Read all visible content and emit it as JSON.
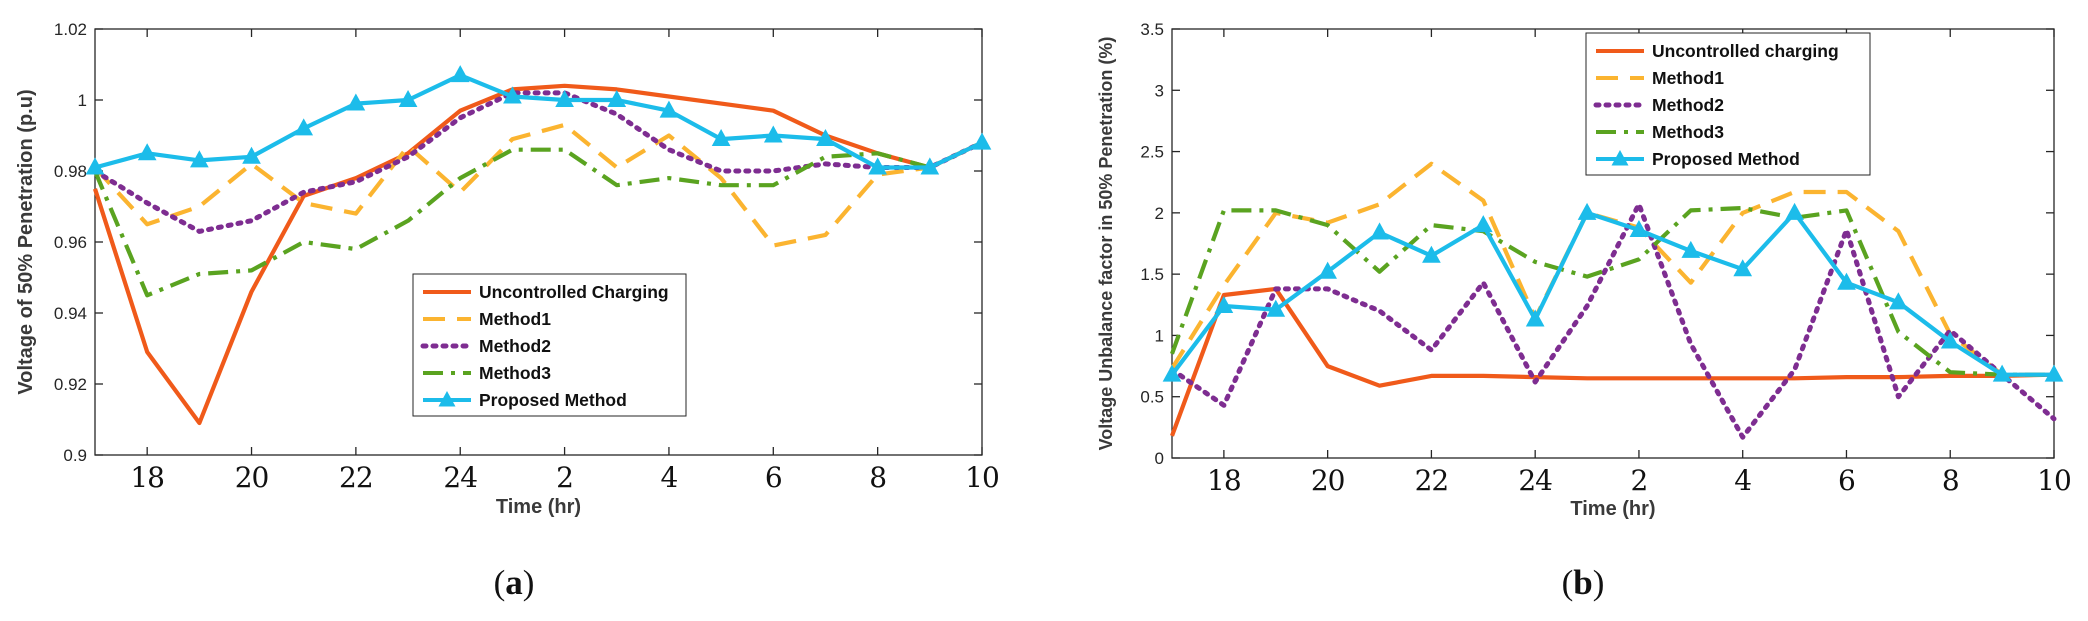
{
  "colors": {
    "uncontrolled": "#f05a1a",
    "method1": "#fbb430",
    "method2": "#7e2d91",
    "method3": "#5aa320",
    "proposed": "#1cbcea"
  },
  "chart_data": [
    {
      "type": "line",
      "caption_letter": "a",
      "xlabel": "Time (hr)",
      "ylabel": "Voltage of 50% Penetration (p.u)",
      "ylim": [
        0.9,
        1.02
      ],
      "yticks": [
        "0.9",
        "0.92",
        "0.94",
        "0.96",
        "0.98",
        "1",
        "1.02"
      ],
      "xtick_labels": [
        "18",
        "20",
        "22",
        "24",
        "2",
        "4",
        "6",
        "8",
        "10"
      ],
      "x": [
        17,
        18,
        19,
        20,
        21,
        22,
        23,
        24,
        25,
        26,
        27,
        28,
        29,
        30,
        31,
        32,
        33,
        34
      ],
      "xlim": [
        17,
        34
      ],
      "legend_position": "lower-center",
      "series": [
        {
          "key": "uncontrolled",
          "name": "Uncontrolled Charging",
          "style": "solid",
          "marker": "none",
          "values": [
            0.975,
            0.929,
            0.909,
            0.946,
            0.973,
            0.978,
            0.985,
            0.997,
            1.003,
            1.004,
            1.003,
            1.001,
            0.999,
            0.997,
            0.99,
            0.985,
            0.981,
            0.988
          ]
        },
        {
          "key": "method1",
          "name": "Method1",
          "style": "dash",
          "marker": "none",
          "values": [
            0.981,
            0.965,
            0.97,
            0.982,
            0.971,
            0.968,
            0.987,
            0.974,
            0.989,
            0.993,
            0.981,
            0.99,
            0.978,
            0.959,
            0.962,
            0.979,
            0.981,
            0.988
          ]
        },
        {
          "key": "method2",
          "name": "Method2",
          "style": "dot",
          "marker": "none",
          "values": [
            0.98,
            0.971,
            0.963,
            0.966,
            0.974,
            0.977,
            0.984,
            0.995,
            1.002,
            1.002,
            0.996,
            0.986,
            0.98,
            0.98,
            0.982,
            0.981,
            0.981,
            0.988
          ]
        },
        {
          "key": "method3",
          "name": "Method3",
          "style": "dashdot",
          "marker": "none",
          "values": [
            0.98,
            0.945,
            0.951,
            0.952,
            0.96,
            0.958,
            0.966,
            0.978,
            0.986,
            0.986,
            0.976,
            0.978,
            0.976,
            0.976,
            0.984,
            0.985,
            0.981,
            0.988
          ]
        },
        {
          "key": "proposed",
          "name": "Proposed Method",
          "style": "solid",
          "marker": "triangle",
          "values": [
            0.981,
            0.985,
            0.983,
            0.984,
            0.992,
            0.999,
            1.0,
            1.007,
            1.001,
            1.0,
            1.0,
            0.997,
            0.989,
            0.99,
            0.989,
            0.981,
            0.981,
            0.988
          ]
        }
      ]
    },
    {
      "type": "line",
      "caption_letter": "b",
      "xlabel": "Time (hr)",
      "ylabel": "Voltage Unbalance factor in 50% Penetration (%)",
      "ylim": [
        0,
        3.5
      ],
      "yticks": [
        "0",
        "0.5",
        "1",
        "1.5",
        "2",
        "2.5",
        "3",
        "3.5"
      ],
      "xtick_labels": [
        "18",
        "20",
        "22",
        "24",
        "2",
        "4",
        "6",
        "8",
        "10"
      ],
      "x": [
        17,
        18,
        19,
        20,
        21,
        22,
        23,
        24,
        25,
        26,
        27,
        28,
        29,
        30,
        31,
        32,
        33,
        34
      ],
      "xlim": [
        17,
        34
      ],
      "legend_position": "top-center",
      "series": [
        {
          "key": "uncontrolled",
          "name": "Uncontrolled charging",
          "style": "solid",
          "marker": "none",
          "values": [
            0.18,
            1.33,
            1.38,
            0.75,
            0.59,
            0.67,
            0.67,
            0.66,
            0.65,
            0.65,
            0.65,
            0.65,
            0.65,
            0.66,
            0.66,
            0.67,
            0.67,
            0.68
          ]
        },
        {
          "key": "method1",
          "name": "Method1",
          "style": "dash",
          "marker": "none",
          "values": [
            0.73,
            1.41,
            2.0,
            1.92,
            2.07,
            2.4,
            2.1,
            1.14,
            2.0,
            1.88,
            1.43,
            2.0,
            2.17,
            2.17,
            1.85,
            1.01,
            0.68,
            0.68
          ]
        },
        {
          "key": "method2",
          "name": "Method2",
          "style": "dot",
          "marker": "none",
          "values": [
            0.72,
            0.43,
            1.38,
            1.38,
            1.2,
            0.88,
            1.43,
            0.62,
            1.24,
            2.07,
            0.93,
            0.17,
            0.72,
            1.86,
            0.5,
            1.04,
            0.68,
            0.32
          ]
        },
        {
          "key": "method3",
          "name": "Method3",
          "style": "dashdot",
          "marker": "none",
          "values": [
            0.85,
            2.02,
            2.02,
            1.9,
            1.52,
            1.9,
            1.85,
            1.6,
            1.48,
            1.62,
            2.02,
            2.04,
            1.96,
            2.02,
            1.03,
            0.7,
            0.68,
            0.68
          ]
        },
        {
          "key": "proposed",
          "name": "Proposed Method",
          "style": "solid",
          "marker": "triangle",
          "values": [
            0.68,
            1.24,
            1.21,
            1.52,
            1.84,
            1.65,
            1.9,
            1.13,
            2.0,
            1.86,
            1.69,
            1.54,
            2.0,
            1.43,
            1.27,
            0.95,
            0.68,
            0.68
          ]
        }
      ]
    }
  ]
}
